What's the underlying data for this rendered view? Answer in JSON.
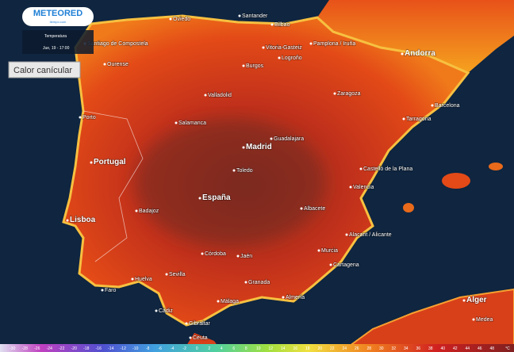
{
  "header": {
    "logo": "METEORED",
    "logo_sub": "tiempo.com",
    "variable": "Temperatura",
    "datetime": "Jue, 19 - 17:00"
  },
  "tag": "Calor canícular",
  "places": [
    "Oviedo",
    "Santander",
    "Bilbao",
    "Santiago de Compostela",
    "Ourense",
    "Vitoria-Gasteiz",
    "Pamplona / Iruña",
    "Logroño",
    "Burgos",
    "Andorra",
    "Valladolid",
    "Zaragoza",
    "Barcelona",
    "Tarragona",
    "Salamanca",
    "Madrid",
    "Guadalajara",
    "Toledo",
    "Portugal",
    "España",
    "Castelló de la Plana",
    "Valencia",
    "Lisboa",
    "Badajoz",
    "Albacete",
    "Alacant / Alicante",
    "Murcia",
    "Cartagena",
    "Córdoba",
    "Jaén",
    "Sevilla",
    "Granada",
    "Huelva",
    "Faro",
    "Málaga",
    "Almería",
    "Cádiz",
    "Gibraltar",
    "Ceuta",
    "Alger",
    "Medea",
    "Porto"
  ],
  "legend": {
    "ticks": [
      "-30",
      "-28",
      "-26",
      "-24",
      "-22",
      "-20",
      "-18",
      "-16",
      "-14",
      "-12",
      "-10",
      "-8",
      "-6",
      "-4",
      "-2",
      "0",
      "2",
      "4",
      "6",
      "8",
      "10",
      "12",
      "14",
      "16",
      "18",
      "20",
      "22",
      "24",
      "26",
      "28",
      "30",
      "32",
      "34",
      "36",
      "38",
      "40",
      "42",
      "44",
      "46",
      "48"
    ],
    "unit": "°C"
  }
}
